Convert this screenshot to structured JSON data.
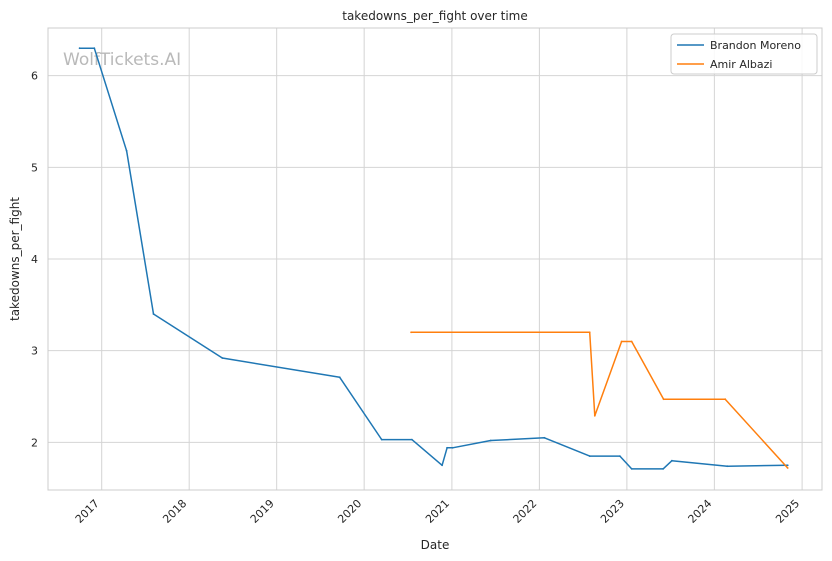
{
  "chart_data": {
    "type": "line",
    "title": "takedowns_per_fight over time",
    "xlabel": "Date",
    "ylabel": "takedowns_per_fight",
    "watermark": "WolfTickets.AI",
    "grid": true,
    "legend_position": "top-right",
    "xlim": [
      "2016-05-22",
      "2025-03-25"
    ],
    "ylim": [
      1.48,
      6.52
    ],
    "x_ticks": [
      "2017-01-01",
      "2018-01-01",
      "2019-01-01",
      "2020-01-01",
      "2021-01-01",
      "2022-01-01",
      "2023-01-01",
      "2024-01-01",
      "2025-01-01"
    ],
    "x_tick_labels": [
      "2017",
      "2018",
      "2019",
      "2020",
      "2021",
      "2022",
      "2023",
      "2024",
      "2025"
    ],
    "y_ticks": [
      2,
      3,
      4,
      5,
      6
    ],
    "y_tick_labels": [
      "2",
      "3",
      "4",
      "5",
      "6"
    ],
    "series": [
      {
        "name": "Brandon Moreno",
        "color": "#1f77b4",
        "points": [
          {
            "x": "2016-10-01",
            "y": 6.3
          },
          {
            "x": "2016-12-01",
            "y": 6.3
          },
          {
            "x": "2017-04-15",
            "y": 5.18
          },
          {
            "x": "2017-08-05",
            "y": 3.4
          },
          {
            "x": "2018-05-19",
            "y": 2.92
          },
          {
            "x": "2019-09-21",
            "y": 2.71
          },
          {
            "x": "2020-03-14",
            "y": 2.03
          },
          {
            "x": "2020-07-18",
            "y": 2.03
          },
          {
            "x": "2020-11-21",
            "y": 1.75
          },
          {
            "x": "2020-12-12",
            "y": 1.94
          },
          {
            "x": "2021-01-04",
            "y": 1.94
          },
          {
            "x": "2021-06-12",
            "y": 2.02
          },
          {
            "x": "2022-01-22",
            "y": 2.05
          },
          {
            "x": "2022-07-30",
            "y": 1.85
          },
          {
            "x": "2022-12-03",
            "y": 1.85
          },
          {
            "x": "2023-01-21",
            "y": 1.71
          },
          {
            "x": "2023-06-01",
            "y": 1.71
          },
          {
            "x": "2023-07-08",
            "y": 1.8
          },
          {
            "x": "2024-02-24",
            "y": 1.74
          },
          {
            "x": "2024-11-02",
            "y": 1.75
          }
        ]
      },
      {
        "name": "Amir Albazi",
        "color": "#ff7f0e",
        "points": [
          {
            "x": "2020-07-15",
            "y": 3.2
          },
          {
            "x": "2022-07-30",
            "y": 3.2
          },
          {
            "x": "2022-08-20",
            "y": 2.29
          },
          {
            "x": "2022-12-10",
            "y": 3.1
          },
          {
            "x": "2023-01-21",
            "y": 3.1
          },
          {
            "x": "2023-06-03",
            "y": 2.47
          },
          {
            "x": "2024-02-15",
            "y": 2.47
          },
          {
            "x": "2024-11-02",
            "y": 1.72
          }
        ]
      }
    ]
  }
}
